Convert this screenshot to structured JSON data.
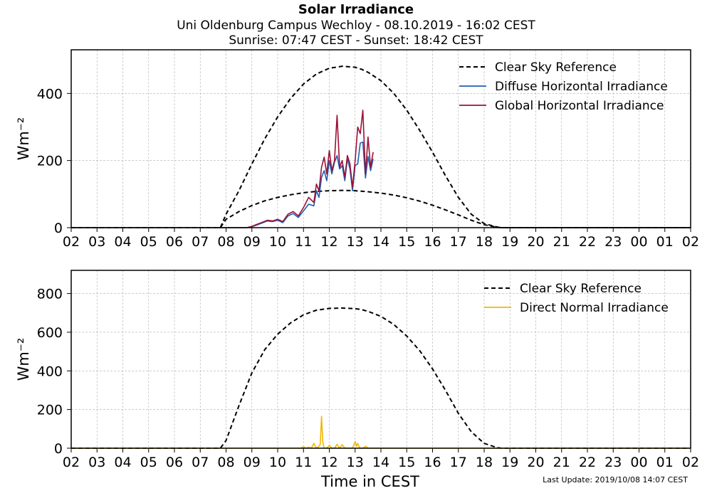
{
  "header": {
    "title": "Solar Irradiance",
    "subtitle": "Uni Oldenburg Campus Wechloy - 08.10.2019 - 16:02 CEST",
    "sun_times": "Sunrise: 07:47 CEST - Sunset: 18:42 CEST"
  },
  "footer": {
    "last_update": "Last Update: 2019/10/08 14:07 CEST"
  },
  "colors": {
    "clear_sky": "#000000",
    "diffuse": "#1f5fb0",
    "global": "#9b1036",
    "direct": "#f2b705",
    "grid": "#b0b0b0"
  },
  "chart_data": [
    {
      "type": "line",
      "ylabel": "Wm⁻²",
      "xlabel": "",
      "xlim": [
        0,
        24
      ],
      "ylim": [
        0,
        530
      ],
      "xticks": [
        "02",
        "03",
        "04",
        "05",
        "06",
        "07",
        "08",
        "09",
        "10",
        "11",
        "12",
        "13",
        "14",
        "15",
        "16",
        "17",
        "18",
        "19",
        "20",
        "21",
        "22",
        "23",
        "00",
        "01",
        "02"
      ],
      "yticks": [
        0,
        200,
        400
      ],
      "grid": true,
      "legend_position": "top-right",
      "series": [
        {
          "name": "Clear Sky Reference",
          "style": "dashed",
          "color": "#000000",
          "x": [
            0,
            5.78,
            6.0,
            6.5,
            7.0,
            7.5,
            8.0,
            8.5,
            9.0,
            9.5,
            10.0,
            10.5,
            11.0,
            11.25,
            11.5,
            12.0,
            12.5,
            13.0,
            13.5,
            14.0,
            14.5,
            15.0,
            15.5,
            16.0,
            16.5,
            16.67,
            24
          ],
          "y": [
            0,
            0,
            40,
            110,
            190,
            265,
            330,
            385,
            428,
            458,
            475,
            481,
            478,
            472,
            463,
            438,
            400,
            350,
            290,
            225,
            155,
            90,
            40,
            12,
            2,
            0,
            0
          ]
        },
        {
          "name": "",
          "style": "dashed",
          "color": "#000000",
          "x": [
            0,
            5.78,
            6.0,
            6.5,
            7.0,
            7.5,
            8.0,
            8.5,
            9.0,
            9.5,
            10.0,
            10.5,
            11.0,
            11.5,
            12.0,
            12.5,
            13.0,
            13.5,
            14.0,
            14.5,
            15.0,
            15.5,
            16.0,
            16.5,
            16.67,
            24
          ],
          "y": [
            0,
            0,
            25,
            48,
            66,
            80,
            90,
            98,
            104,
            108,
            110,
            111,
            110,
            107,
            103,
            97,
            89,
            79,
            67,
            53,
            38,
            22,
            9,
            1,
            0,
            0
          ]
        },
        {
          "name": "Diffuse Horizontal Irradiance",
          "color": "#1f5fb0",
          "x": [
            0,
            6.8,
            7.0,
            7.2,
            7.4,
            7.6,
            7.8,
            8.0,
            8.2,
            8.4,
            8.6,
            8.8,
            9.0,
            9.2,
            9.4,
            9.5,
            9.6,
            9.7,
            9.8,
            9.9,
            10.0,
            10.1,
            10.2,
            10.3,
            10.4,
            10.5,
            10.6,
            10.7,
            10.8,
            10.9,
            11.0,
            11.1,
            11.2,
            11.3,
            11.4,
            11.5,
            11.6,
            11.7
          ],
          "y": [
            0,
            0,
            3,
            8,
            14,
            20,
            18,
            22,
            15,
            35,
            42,
            30,
            50,
            70,
            65,
            110,
            90,
            150,
            170,
            140,
            200,
            160,
            195,
            215,
            175,
            185,
            140,
            205,
            175,
            110,
            185,
            190,
            252,
            255,
            148,
            212,
            170,
            205
          ]
        },
        {
          "name": "Global Horizontal Irradiance",
          "color": "#9b1036",
          "x": [
            0,
            6.8,
            7.0,
            7.2,
            7.4,
            7.6,
            7.8,
            8.0,
            8.2,
            8.4,
            8.6,
            8.8,
            9.0,
            9.2,
            9.4,
            9.5,
            9.6,
            9.7,
            9.8,
            9.9,
            10.0,
            10.1,
            10.2,
            10.3,
            10.4,
            10.5,
            10.6,
            10.7,
            10.8,
            10.9,
            11.0,
            11.1,
            11.2,
            11.3,
            11.4,
            11.5,
            11.6,
            11.7
          ],
          "y": [
            0,
            0,
            4,
            10,
            16,
            22,
            20,
            25,
            18,
            40,
            48,
            35,
            60,
            90,
            75,
            130,
            110,
            180,
            210,
            160,
            230,
            170,
            200,
            335,
            180,
            200,
            150,
            215,
            190,
            120,
            200,
            300,
            280,
            350,
            160,
            270,
            180,
            225
          ]
        }
      ]
    },
    {
      "type": "line",
      "ylabel": "Wm⁻²",
      "xlabel": "Time in CEST",
      "xlim": [
        0,
        24
      ],
      "ylim": [
        0,
        920
      ],
      "xticks": [
        "02",
        "03",
        "04",
        "05",
        "06",
        "07",
        "08",
        "09",
        "10",
        "11",
        "12",
        "13",
        "14",
        "15",
        "16",
        "17",
        "18",
        "19",
        "20",
        "21",
        "22",
        "23",
        "00",
        "01",
        "02"
      ],
      "yticks": [
        0,
        200,
        400,
        600,
        800
      ],
      "grid": true,
      "legend_position": "top-right",
      "series": [
        {
          "name": "Clear Sky Reference",
          "style": "dashed",
          "color": "#000000",
          "x": [
            0,
            5.78,
            6.0,
            6.5,
            7.0,
            7.5,
            8.0,
            8.5,
            9.0,
            9.5,
            10.0,
            10.5,
            11.0,
            11.25,
            11.5,
            12.0,
            12.5,
            13.0,
            13.5,
            14.0,
            14.5,
            15.0,
            15.5,
            16.0,
            16.5,
            16.67,
            24
          ],
          "y": [
            0,
            0,
            40,
            220,
            390,
            510,
            590,
            648,
            690,
            714,
            723,
            725,
            722,
            717,
            708,
            682,
            640,
            580,
            505,
            410,
            300,
            180,
            85,
            25,
            3,
            0,
            0
          ]
        },
        {
          "name": "Direct Normal Irradiance",
          "color": "#f2b705",
          "x": [
            0,
            8.9,
            9.0,
            9.1,
            9.2,
            9.3,
            9.4,
            9.5,
            9.6,
            9.65,
            9.7,
            9.75,
            9.8,
            9.9,
            10.0,
            10.1,
            10.2,
            10.3,
            10.4,
            10.5,
            10.6,
            10.7,
            10.8,
            10.9,
            11.0,
            11.05,
            11.1,
            11.15,
            11.2,
            11.3,
            11.4,
            11.5,
            11.6,
            11.7,
            24
          ],
          "y": [
            0,
            0,
            8,
            0,
            5,
            0,
            25,
            0,
            10,
            20,
            165,
            30,
            0,
            0,
            15,
            0,
            0,
            20,
            0,
            18,
            0,
            0,
            0,
            0,
            35,
            10,
            25,
            8,
            0,
            0,
            10,
            0,
            0,
            0,
            0
          ]
        }
      ]
    }
  ]
}
